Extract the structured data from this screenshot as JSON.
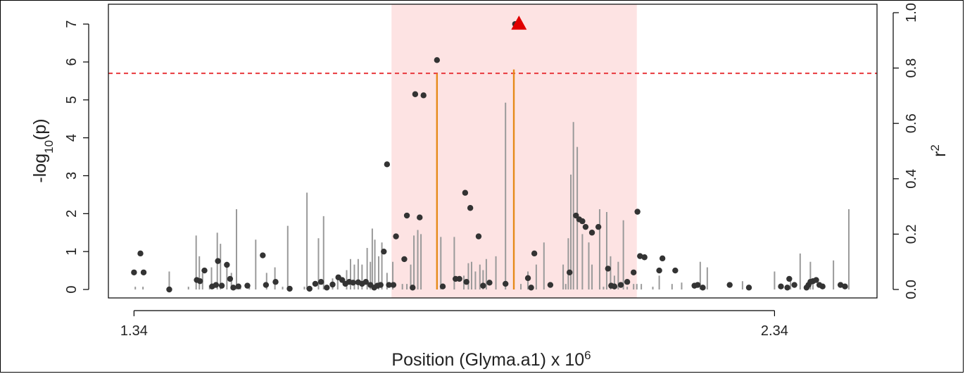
{
  "chart_data": {
    "type": "scatter",
    "title": "",
    "xlabel": {
      "text": "Position (Glyma.a1) x 10",
      "sup": "6"
    },
    "ylabel": {
      "prefix": "-log",
      "sub": "10",
      "suffix": "(p)"
    },
    "y2label": {
      "text": "r",
      "sup": "2"
    },
    "xlim": [
      1.3,
      2.5
    ],
    "ylim": [
      0,
      7.3
    ],
    "y2lim": [
      0,
      1.0
    ],
    "x_ticks": [
      {
        "value": 1.34,
        "label": "1.34"
      },
      {
        "value": 2.34,
        "label": "2.34"
      }
    ],
    "y_ticks": [
      {
        "value": 0,
        "label": "0"
      },
      {
        "value": 1,
        "label": "1"
      },
      {
        "value": 2,
        "label": "2"
      },
      {
        "value": 3,
        "label": "3"
      },
      {
        "value": 4,
        "label": "4"
      },
      {
        "value": 5,
        "label": "5"
      },
      {
        "value": 6,
        "label": "6"
      },
      {
        "value": 7,
        "label": "7"
      }
    ],
    "y2_ticks": [
      {
        "value": 0.0,
        "label": "0.0"
      },
      {
        "value": 0.2,
        "label": "0.2"
      },
      {
        "value": 0.4,
        "label": "0.4"
      },
      {
        "value": 0.6,
        "label": "0.6"
      },
      {
        "value": 0.8,
        "label": "0.8"
      },
      {
        "value": 1.0,
        "label": "1.0"
      }
    ],
    "threshold": {
      "value": 5.7,
      "color": "#e8383d",
      "style": "dashed"
    },
    "highlight_region": {
      "x": [
        1.742,
        2.125
      ],
      "color": "#fde3e3"
    },
    "lead_snp": {
      "x": 1.941,
      "y": 7.0,
      "color": "#e00000",
      "shape": "triangle"
    },
    "point_color": "#333333",
    "r2_bar_color": "#9a9a9a",
    "r2_highlight_color": "#e68a1a",
    "points": [
      [
        1.34,
        0.45
      ],
      [
        1.35,
        0.95
      ],
      [
        1.355,
        0.45
      ],
      [
        1.395,
        0.0
      ],
      [
        1.438,
        0.25
      ],
      [
        1.443,
        0.22
      ],
      [
        1.45,
        0.5
      ],
      [
        1.462,
        0.08
      ],
      [
        1.468,
        0.12
      ],
      [
        1.471,
        0.75
      ],
      [
        1.477,
        0.1
      ],
      [
        1.485,
        0.65
      ],
      [
        1.49,
        0.28
      ],
      [
        1.495,
        0.05
      ],
      [
        1.503,
        0.08
      ],
      [
        1.517,
        0.1
      ],
      [
        1.541,
        0.9
      ],
      [
        1.546,
        0.12
      ],
      [
        1.561,
        0.2
      ],
      [
        1.583,
        0.02
      ],
      [
        1.614,
        0.02
      ],
      [
        1.623,
        0.15
      ],
      [
        1.632,
        0.2
      ],
      [
        1.641,
        0.05
      ],
      [
        1.65,
        0.13
      ],
      [
        1.659,
        0.32
      ],
      [
        1.665,
        0.25
      ],
      [
        1.67,
        0.15
      ],
      [
        1.676,
        0.2
      ],
      [
        1.682,
        0.18
      ],
      [
        1.69,
        0.19
      ],
      [
        1.696,
        0.15
      ],
      [
        1.702,
        0.2
      ],
      [
        1.709,
        0.12
      ],
      [
        1.715,
        0.05
      ],
      [
        1.72,
        0.1
      ],
      [
        1.725,
        0.12
      ],
      [
        1.73,
        1.0
      ],
      [
        1.735,
        3.3
      ],
      [
        1.738,
        0.12
      ],
      [
        1.745,
        0.12
      ],
      [
        1.749,
        1.4
      ],
      [
        1.762,
        0.8
      ],
      [
        1.766,
        1.95
      ],
      [
        1.775,
        0.05
      ],
      [
        1.779,
        5.15
      ],
      [
        1.786,
        1.9
      ],
      [
        1.792,
        5.12
      ],
      [
        1.813,
        6.05
      ],
      [
        1.822,
        0.08
      ],
      [
        1.842,
        0.28
      ],
      [
        1.848,
        0.28
      ],
      [
        1.857,
        2.55
      ],
      [
        1.859,
        0.2
      ],
      [
        1.865,
        2.15
      ],
      [
        1.878,
        1.4
      ],
      [
        1.885,
        0.1
      ],
      [
        1.895,
        0.18
      ],
      [
        1.92,
        0.15
      ],
      [
        1.935,
        7.0
      ],
      [
        1.955,
        0.3
      ],
      [
        1.965,
        0.95
      ],
      [
        1.96,
        0.05
      ],
      [
        1.99,
        0.12
      ],
      [
        2.02,
        0.45
      ],
      [
        2.03,
        1.95
      ],
      [
        2.035,
        1.85
      ],
      [
        2.04,
        1.8
      ],
      [
        2.045,
        1.65
      ],
      [
        2.055,
        1.5
      ],
      [
        2.065,
        1.65
      ],
      [
        2.08,
        0.55
      ],
      [
        2.085,
        0.1
      ],
      [
        2.09,
        0.08
      ],
      [
        2.1,
        0.12
      ],
      [
        2.11,
        0.2
      ],
      [
        2.12,
        0.45
      ],
      [
        2.126,
        2.05
      ],
      [
        2.13,
        0.88
      ],
      [
        2.137,
        0.85
      ],
      [
        2.16,
        0.5
      ],
      [
        2.165,
        0.82
      ],
      [
        2.185,
        0.5
      ],
      [
        2.215,
        0.1
      ],
      [
        2.22,
        0.12
      ],
      [
        2.228,
        0.05
      ],
      [
        2.27,
        0.12
      ],
      [
        2.3,
        0.05
      ],
      [
        2.35,
        0.08
      ],
      [
        2.36,
        0.05
      ],
      [
        2.363,
        0.28
      ],
      [
        2.371,
        0.12
      ],
      [
        2.39,
        0.05
      ],
      [
        2.393,
        0.12
      ],
      [
        2.396,
        0.2
      ],
      [
        2.4,
        0.22
      ],
      [
        2.405,
        0.25
      ],
      [
        2.41,
        0.12
      ],
      [
        2.415,
        0.08
      ],
      [
        2.443,
        0.12
      ],
      [
        2.45,
        0.08
      ]
    ],
    "r2_bars": [
      [
        1.342,
        0.01
      ],
      [
        1.354,
        0.01
      ],
      [
        1.395,
        0.065
      ],
      [
        1.425,
        0.01
      ],
      [
        1.437,
        0.195
      ],
      [
        1.442,
        0.12
      ],
      [
        1.447,
        0.06
      ],
      [
        1.458,
        0.015
      ],
      [
        1.461,
        0.08
      ],
      [
        1.47,
        0.205
      ],
      [
        1.475,
        0.165
      ],
      [
        1.485,
        0.1
      ],
      [
        1.492,
        0.06
      ],
      [
        1.5,
        0.29
      ],
      [
        1.506,
        0.01
      ],
      [
        1.52,
        0.01
      ],
      [
        1.53,
        0.18
      ],
      [
        1.547,
        0.06
      ],
      [
        1.56,
        0.08
      ],
      [
        1.572,
        0.01
      ],
      [
        1.58,
        0.23
      ],
      [
        1.606,
        0.01
      ],
      [
        1.61,
        0.35
      ],
      [
        1.628,
        0.185
      ],
      [
        1.636,
        0.265
      ],
      [
        1.65,
        0.04
      ],
      [
        1.658,
        0.04
      ],
      [
        1.672,
        0.07
      ],
      [
        1.678,
        0.11
      ],
      [
        1.684,
        0.09
      ],
      [
        1.69,
        0.11
      ],
      [
        1.696,
        0.09
      ],
      [
        1.704,
        0.15
      ],
      [
        1.709,
        0.1
      ],
      [
        1.712,
        0.22
      ],
      [
        1.716,
        0.18
      ],
      [
        1.722,
        0.12
      ],
      [
        1.727,
        0.17
      ],
      [
        1.735,
        0.06
      ],
      [
        1.744,
        0.1
      ],
      [
        1.759,
        0.02
      ],
      [
        1.766,
        0.02
      ],
      [
        1.772,
        0.09
      ],
      [
        1.777,
        0.195
      ],
      [
        1.783,
        0.215
      ],
      [
        1.788,
        0.2
      ],
      [
        1.813,
        0.78,
        "hl"
      ],
      [
        1.819,
        0.19
      ],
      [
        1.84,
        0.19
      ],
      [
        1.855,
        0.05
      ],
      [
        1.862,
        0.095
      ],
      [
        1.867,
        0.1
      ],
      [
        1.873,
        0.065
      ],
      [
        1.88,
        0.09
      ],
      [
        1.885,
        0.07
      ],
      [
        1.89,
        0.11
      ],
      [
        1.905,
        0.12
      ],
      [
        1.92,
        0.675
      ],
      [
        1.933,
        0.795,
        "hl"
      ],
      [
        1.944,
        0.02
      ],
      [
        1.955,
        0.065
      ],
      [
        1.968,
        0.09
      ],
      [
        1.98,
        0.17
      ],
      [
        2.01,
        0.09
      ],
      [
        2.014,
        0.02
      ],
      [
        2.018,
        0.185
      ],
      [
        2.022,
        0.415
      ],
      [
        2.026,
        0.605
      ],
      [
        2.032,
        0.515
      ],
      [
        2.04,
        0.2
      ],
      [
        2.05,
        0.17
      ],
      [
        2.055,
        0.09
      ],
      [
        2.067,
        0.29
      ],
      [
        2.073,
        0.01
      ],
      [
        2.078,
        0.28
      ],
      [
        2.084,
        0.12
      ],
      [
        2.09,
        0.05
      ],
      [
        2.096,
        0.1
      ],
      [
        2.104,
        0.25
      ],
      [
        2.11,
        0.01
      ],
      [
        2.12,
        0.02
      ],
      [
        2.125,
        0.02
      ],
      [
        2.132,
        0.02
      ],
      [
        2.15,
        0.01
      ],
      [
        2.16,
        0.05
      ],
      [
        2.18,
        0.02
      ],
      [
        2.195,
        0.025
      ],
      [
        2.224,
        0.1
      ],
      [
        2.235,
        0.08
      ],
      [
        2.29,
        0.03
      ],
      [
        2.34,
        0.065
      ],
      [
        2.365,
        0.04
      ],
      [
        2.38,
        0.13
      ],
      [
        2.396,
        0.1
      ],
      [
        2.4,
        0.04
      ],
      [
        2.432,
        0.105
      ],
      [
        2.456,
        0.29
      ]
    ]
  }
}
